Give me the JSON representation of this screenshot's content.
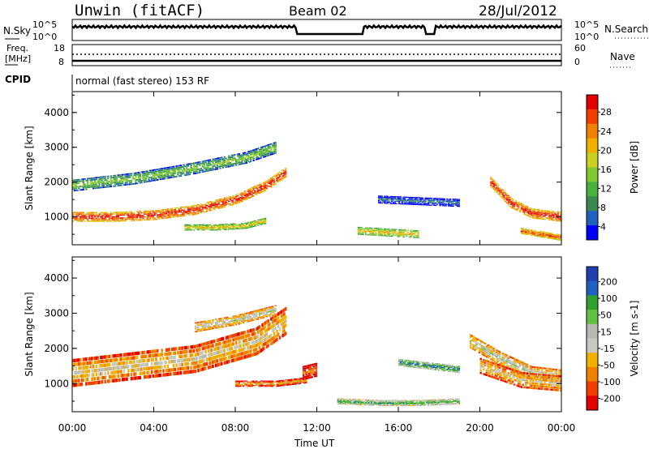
{
  "header": {
    "station": "Unwin (fitACF)",
    "beam": "Beam 02",
    "date": "28/Jul/2012"
  },
  "strip_labels": {
    "nsky": "N.Sky",
    "nsky_ticks": [
      "10^5",
      "10^0"
    ],
    "nsearch": "N.Search",
    "nsearch_ticks": [
      "10^5",
      "10^0"
    ],
    "freq_line1": "Freq.",
    "freq_line2": "[MHz]",
    "freq_ticks": [
      "18",
      "8"
    ],
    "nave": "Nave",
    "nave_ticks": [
      "60",
      "0"
    ],
    "cpid": "CPID",
    "cpid_text": "normal (fast stereo) 153 RF"
  },
  "colors": {
    "power_scale": [
      "#0000ff",
      "#2060c0",
      "#3a8a50",
      "#4ab040",
      "#80c830",
      "#c8d020",
      "#f0b000",
      "#f08000",
      "#f04000",
      "#e00000"
    ],
    "velocity_scale": [
      "#e00000",
      "#f04000",
      "#f08000",
      "#f0b000",
      "#c8c8c0",
      "#b8b8b0",
      "#60c040",
      "#30a030",
      "#2060c0",
      "#2040b0"
    ]
  },
  "chart_data": [
    {
      "type": "heatmap",
      "panel": "power",
      "xlabel": "Time UT",
      "ylabel": "Slant Range [km]",
      "x_ticks": [
        "00:00",
        "04:00",
        "08:00",
        "12:00",
        "16:00",
        "20:00",
        "00:00"
      ],
      "y_ticks": [
        1000,
        2000,
        3000,
        4000
      ],
      "ylim": [
        200,
        4600
      ],
      "colorbar_label": "Power [dB]",
      "colorbar_ticks": [
        "28",
        "24",
        "20",
        "16",
        "12",
        "8",
        "4"
      ],
      "bands": [
        {
          "t": [
            0.0,
            2.0,
            4.0,
            6.0,
            8.0,
            9.5,
            10.5
          ],
          "center": [
            1000,
            1000,
            1050,
            1200,
            1500,
            1900,
            2300
          ],
          "width": 250,
          "level": 9
        },
        {
          "t": [
            0.0,
            3.0,
            6.0,
            8.5,
            10.0
          ],
          "center": [
            1900,
            2100,
            2400,
            2700,
            3000
          ],
          "width": 300,
          "level": 4
        },
        {
          "t": [
            5.5,
            7.0,
            8.5,
            9.5
          ],
          "center": [
            700,
            700,
            750,
            900
          ],
          "width": 150,
          "level": 6
        },
        {
          "t": [
            14.0,
            15.5,
            17.0
          ],
          "center": [
            600,
            550,
            500
          ],
          "width": 200,
          "level": 6
        },
        {
          "t": [
            15.0,
            17.0,
            19.0
          ],
          "center": [
            1500,
            1450,
            1400
          ],
          "width": 200,
          "level": 2
        },
        {
          "t": [
            20.5,
            21.5,
            22.5,
            24.0
          ],
          "center": [
            2000,
            1400,
            1100,
            1000
          ],
          "width": 250,
          "level": 9
        },
        {
          "t": [
            22.0,
            23.0,
            24.0
          ],
          "center": [
            600,
            500,
            400
          ],
          "width": 150,
          "level": 8
        }
      ]
    },
    {
      "type": "heatmap",
      "panel": "velocity",
      "xlabel": "Time UT",
      "ylabel": "Slant Range [km]",
      "x_ticks": [
        "00:00",
        "04:00",
        "08:00",
        "12:00",
        "16:00",
        "20:00",
        "00:00"
      ],
      "y_ticks": [
        1000,
        2000,
        3000,
        4000
      ],
      "ylim": [
        200,
        4600
      ],
      "colorbar_label": "Velocity [m s-1]",
      "colorbar_ticks": [
        "200",
        "100",
        "50",
        "15",
        "-15",
        "-50",
        "-100",
        "-200"
      ],
      "bands": [
        {
          "t": [
            0.0,
            3.0,
            6.0,
            9.0,
            10.5
          ],
          "center": [
            1300,
            1500,
            1700,
            2200,
            2800
          ],
          "width": 700,
          "level": 4
        },
        {
          "t": [
            6.0,
            8.0,
            10.0
          ],
          "center": [
            2600,
            2800,
            3100
          ],
          "width": 250,
          "level": 5
        },
        {
          "t": [
            8.0,
            10.0,
            11.5
          ],
          "center": [
            1000,
            1000,
            1100
          ],
          "width": 150,
          "level": 3
        },
        {
          "t": [
            11.3,
            12.0
          ],
          "center": [
            1300,
            1400
          ],
          "width": 350,
          "level": 2
        },
        {
          "t": [
            13.0,
            15.0,
            17.0,
            19.0
          ],
          "center": [
            500,
            450,
            450,
            500
          ],
          "width": 150,
          "level": 7
        },
        {
          "t": [
            16.0,
            17.5,
            19.0
          ],
          "center": [
            1600,
            1500,
            1400
          ],
          "width": 180,
          "level": 8
        },
        {
          "t": [
            19.5,
            21.0,
            22.5,
            24.0
          ],
          "center": [
            2200,
            1700,
            1300,
            1200
          ],
          "width": 350,
          "level": 5
        },
        {
          "t": [
            20.0,
            22.0,
            24.0
          ],
          "center": [
            1500,
            1100,
            1000
          ],
          "width": 400,
          "level": 4
        }
      ]
    }
  ],
  "axis_title": "Time UT"
}
